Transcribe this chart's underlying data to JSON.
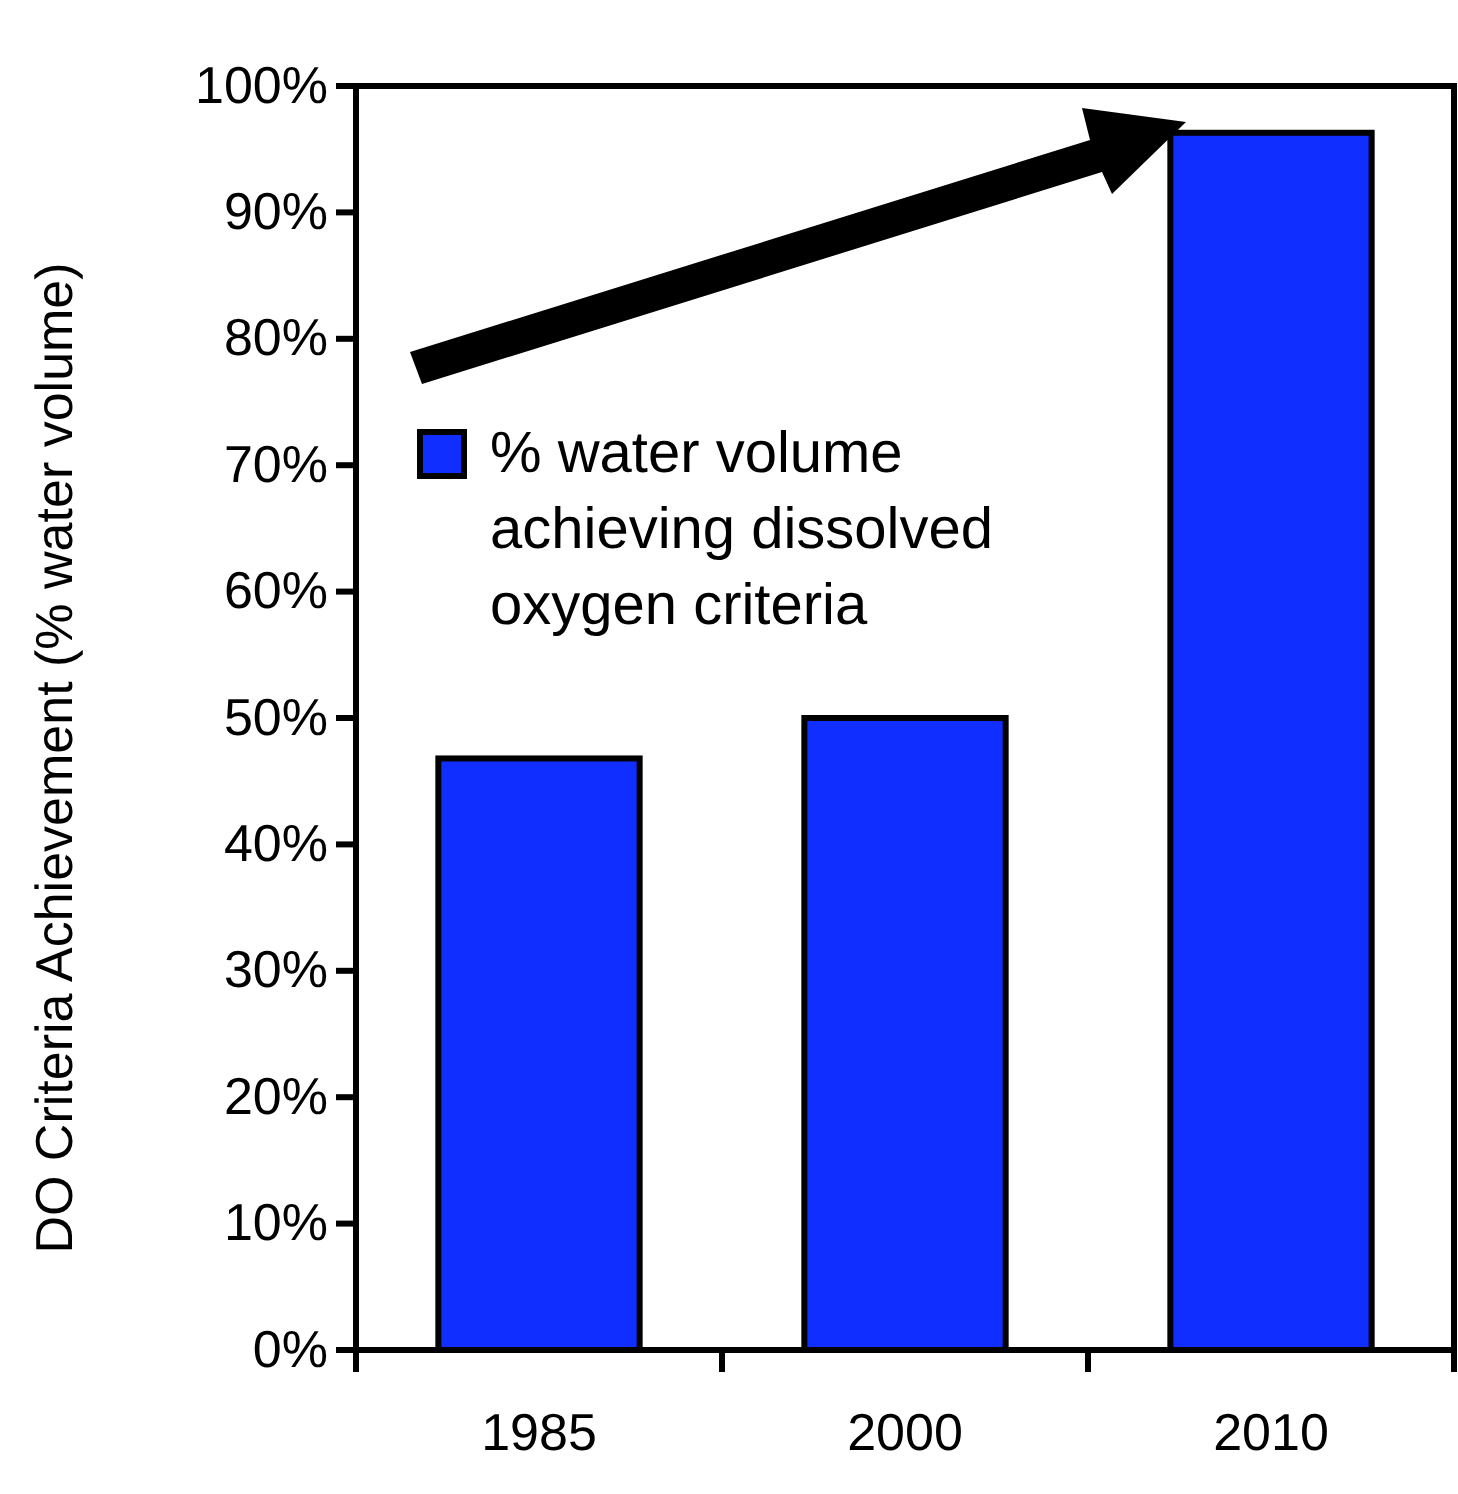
{
  "chart_data": {
    "type": "bar",
    "ylabel": "DO Criteria Achievement (% water volume)",
    "categories": [
      "1985",
      "2000",
      "2010"
    ],
    "series": [
      {
        "name": "% water volume achieving dissolved oxygen criteria",
        "color": "#0f2eff",
        "values": [
          46.8,
          50,
          96.3
        ]
      }
    ],
    "ylim": [
      0,
      100
    ],
    "yticks": [
      {
        "value": 0,
        "label": "0%"
      },
      {
        "value": 10,
        "label": "10%"
      },
      {
        "value": 20,
        "label": "20%"
      },
      {
        "value": 30,
        "label": "30%"
      },
      {
        "value": 40,
        "label": "40%"
      },
      {
        "value": 50,
        "label": "50%"
      },
      {
        "value": 60,
        "label": "60%"
      },
      {
        "value": 70,
        "label": "70%"
      },
      {
        "value": 80,
        "label": "80%"
      },
      {
        "value": 90,
        "label": "90%"
      },
      {
        "value": 100,
        "label": "100%"
      }
    ],
    "legend": "top left",
    "grid": false
  }
}
